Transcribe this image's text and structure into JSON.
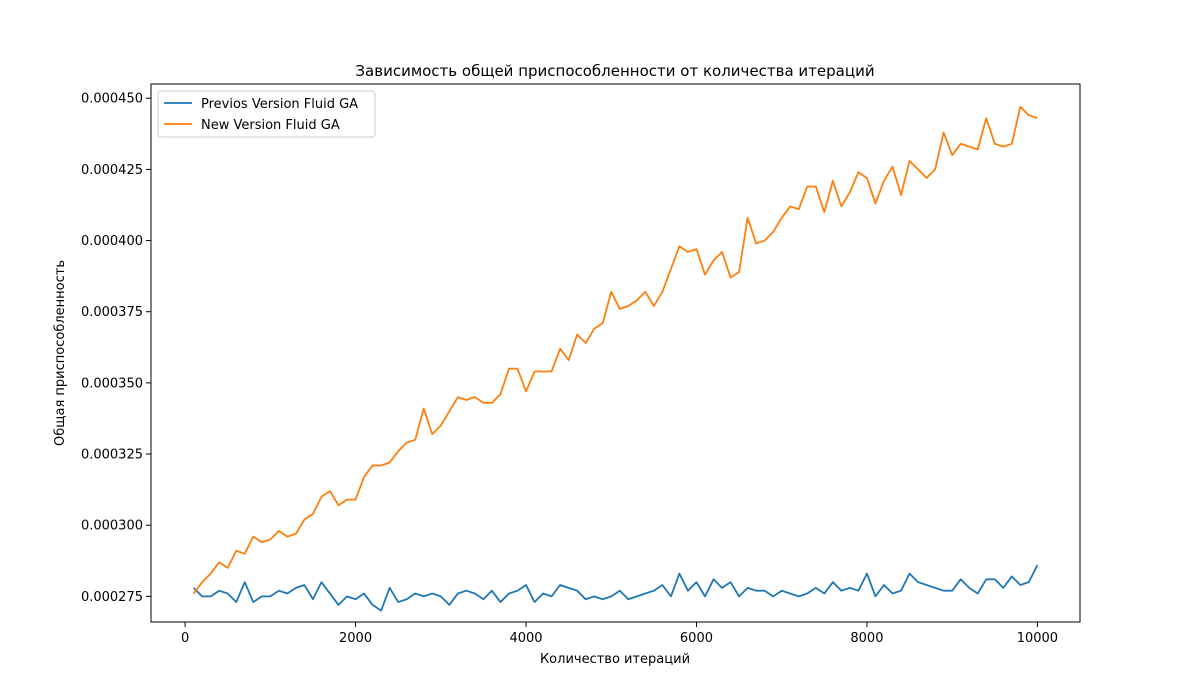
{
  "chart_data": {
    "type": "line",
    "title": "Зависимость общей приспособленности от количества итераций",
    "xlabel": "Количество итераций",
    "ylabel": "Общая приспособленность",
    "xlim": [
      -400,
      10500
    ],
    "ylim": [
      0.000266,
      0.000455
    ],
    "xticks": [
      0,
      2000,
      4000,
      6000,
      8000,
      10000
    ],
    "yticks": [
      0.000275,
      0.0003,
      0.000325,
      0.00035,
      0.000375,
      0.0004,
      0.000425,
      0.00045
    ],
    "xtick_labels": [
      "0",
      "2000",
      "4000",
      "6000",
      "8000",
      "10000"
    ],
    "ytick_labels": [
      "0.000275",
      "0.000300",
      "0.000325",
      "0.000350",
      "0.000375",
      "0.000400",
      "0.000425",
      "0.000450"
    ],
    "grid": false,
    "legend_position": "top-left",
    "x": [
      100,
      200,
      300,
      400,
      500,
      600,
      700,
      800,
      900,
      1000,
      1100,
      1200,
      1300,
      1400,
      1500,
      1600,
      1700,
      1800,
      1900,
      2000,
      2100,
      2200,
      2300,
      2400,
      2500,
      2600,
      2700,
      2800,
      2900,
      3000,
      3100,
      3200,
      3300,
      3400,
      3500,
      3600,
      3700,
      3800,
      3900,
      4000,
      4100,
      4200,
      4300,
      4400,
      4500,
      4600,
      4700,
      4800,
      4900,
      5000,
      5100,
      5200,
      5300,
      5400,
      5500,
      5600,
      5700,
      5800,
      5900,
      6000,
      6100,
      6200,
      6300,
      6400,
      6500,
      6600,
      6700,
      6800,
      6900,
      7000,
      7100,
      7200,
      7300,
      7400,
      7500,
      7600,
      7700,
      7800,
      7900,
      8000,
      8100,
      8200,
      8300,
      8400,
      8500,
      8600,
      8700,
      8800,
      8900,
      9000,
      9100,
      9200,
      9300,
      9400,
      9500,
      9600,
      9700,
      9800,
      9900,
      10000
    ],
    "series": [
      {
        "name": "Previos Version Fluid GA",
        "color": "#1f77b4",
        "values": [
          0.000278,
          0.000275,
          0.000275,
          0.000277,
          0.000276,
          0.000273,
          0.00028,
          0.000273,
          0.000275,
          0.000275,
          0.000277,
          0.000276,
          0.000278,
          0.000279,
          0.000274,
          0.00028,
          0.000276,
          0.000272,
          0.000275,
          0.000274,
          0.000276,
          0.000272,
          0.00027,
          0.000278,
          0.000273,
          0.000274,
          0.000276,
          0.000275,
          0.000276,
          0.000275,
          0.000272,
          0.000276,
          0.000277,
          0.000276,
          0.000274,
          0.000277,
          0.000273,
          0.000276,
          0.000277,
          0.000279,
          0.000273,
          0.000276,
          0.000275,
          0.000279,
          0.000278,
          0.000277,
          0.000274,
          0.000275,
          0.000274,
          0.000275,
          0.000277,
          0.000274,
          0.000275,
          0.000276,
          0.000277,
          0.000279,
          0.000275,
          0.000283,
          0.000277,
          0.00028,
          0.000275,
          0.000281,
          0.000278,
          0.00028,
          0.000275,
          0.000278,
          0.000277,
          0.000277,
          0.000275,
          0.000277,
          0.000276,
          0.000275,
          0.000276,
          0.000278,
          0.000276,
          0.00028,
          0.000277,
          0.000278,
          0.000277,
          0.000283,
          0.000275,
          0.000279,
          0.000276,
          0.000277,
          0.000283,
          0.00028,
          0.000279,
          0.000278,
          0.000277,
          0.000277,
          0.000281,
          0.000278,
          0.000276,
          0.000281,
          0.000281,
          0.000278,
          0.000282,
          0.000279,
          0.00028,
          0.000286
        ]
      },
      {
        "name": "New Version Fluid GA",
        "color": "#ff7f0e",
        "values": [
          0.000276,
          0.00028,
          0.000283,
          0.000287,
          0.000285,
          0.000291,
          0.00029,
          0.000296,
          0.000294,
          0.000295,
          0.000298,
          0.000296,
          0.000297,
          0.000302,
          0.000304,
          0.00031,
          0.000312,
          0.000307,
          0.000309,
          0.000309,
          0.000317,
          0.000321,
          0.000321,
          0.000322,
          0.000326,
          0.000329,
          0.00033,
          0.000341,
          0.000332,
          0.000335,
          0.00034,
          0.000345,
          0.000344,
          0.000345,
          0.000343,
          0.000343,
          0.000346,
          0.000355,
          0.000355,
          0.000347,
          0.000354,
          0.000354,
          0.000354,
          0.000362,
          0.000358,
          0.000367,
          0.000364,
          0.000369,
          0.000371,
          0.000382,
          0.000376,
          0.000377,
          0.000379,
          0.000382,
          0.000377,
          0.000382,
          0.00039,
          0.000398,
          0.000396,
          0.000397,
          0.000388,
          0.000393,
          0.000396,
          0.000387,
          0.000389,
          0.000408,
          0.000399,
          0.0004,
          0.000403,
          0.000408,
          0.000412,
          0.000411,
          0.000419,
          0.000419,
          0.00041,
          0.000421,
          0.000412,
          0.000417,
          0.000424,
          0.000422,
          0.000413,
          0.000421,
          0.000426,
          0.000416,
          0.000428,
          0.000425,
          0.000422,
          0.000425,
          0.000438,
          0.00043,
          0.000434,
          0.000433,
          0.000432,
          0.000443,
          0.000434,
          0.000433,
          0.000434,
          0.000447,
          0.000444,
          0.000443
        ]
      }
    ]
  }
}
